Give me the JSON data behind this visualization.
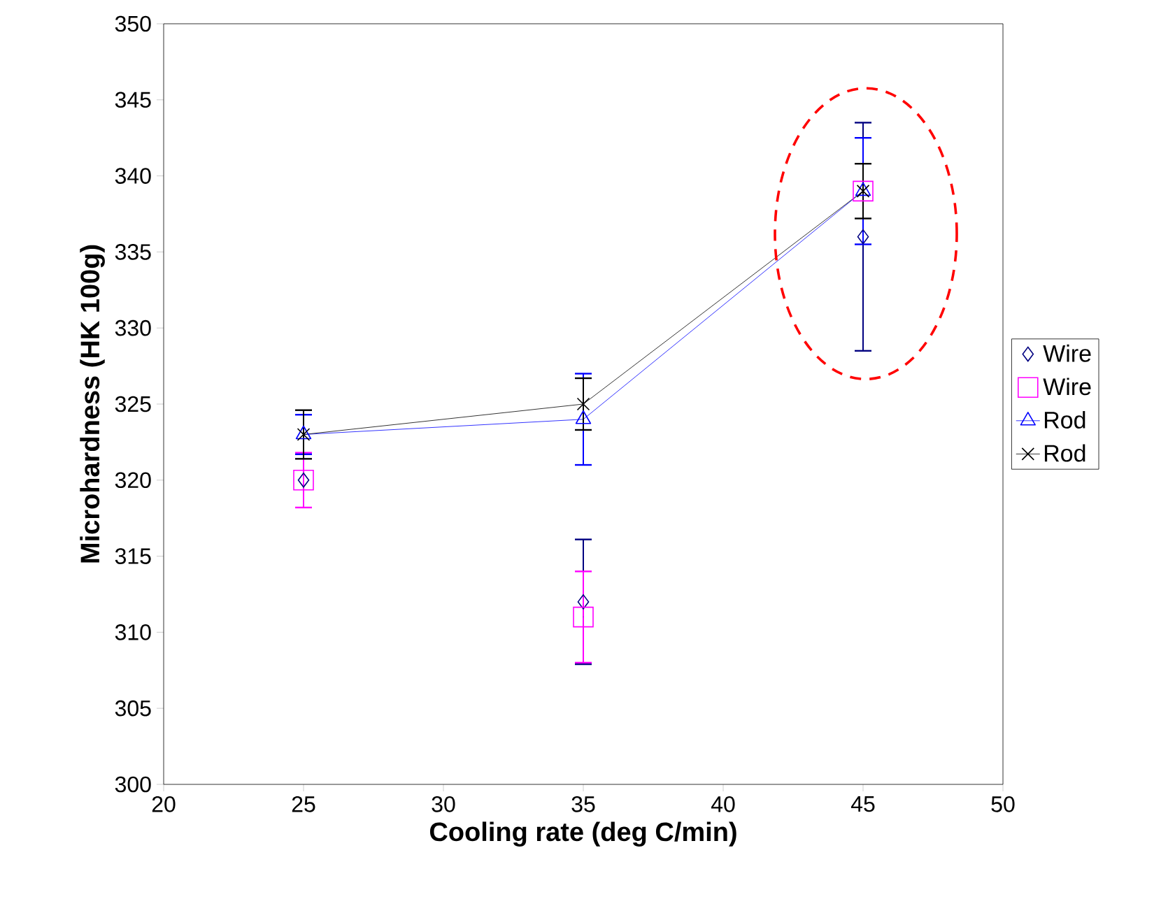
{
  "chart_data": {
    "type": "scatter",
    "xlabel": "Cooling rate (deg C/min)",
    "ylabel": "Microhardness (HK 100g)",
    "x": [
      25,
      35,
      45
    ],
    "xlim": [
      20,
      50
    ],
    "xticks": [
      20,
      25,
      30,
      35,
      40,
      45,
      50
    ],
    "ylim": [
      300,
      350
    ],
    "yticks": [
      300,
      305,
      310,
      315,
      320,
      325,
      330,
      335,
      340,
      345,
      350
    ],
    "grid": false,
    "legend": "right",
    "series": [
      {
        "name": "Wire",
        "marker": "diamond",
        "color": "#000080",
        "values": [
          320,
          312,
          336
        ],
        "errors": [
          null,
          4.1,
          7.5
        ]
      },
      {
        "name": "Wire",
        "marker": "square",
        "color": "#ff00ff",
        "values": [
          320,
          311,
          339
        ],
        "errors": [
          1.8,
          3,
          null
        ]
      },
      {
        "name": "Rod",
        "type": "line",
        "marker": "triangle",
        "color": "#0000ff",
        "values": [
          323,
          324,
          339
        ],
        "errors": [
          1.3,
          3,
          3.5
        ]
      },
      {
        "name": "Rod",
        "type": "line",
        "marker": "cross",
        "color": "#000000",
        "values": [
          323,
          325,
          339
        ],
        "errors": [
          1.6,
          1.7,
          1.8
        ]
      }
    ]
  }
}
